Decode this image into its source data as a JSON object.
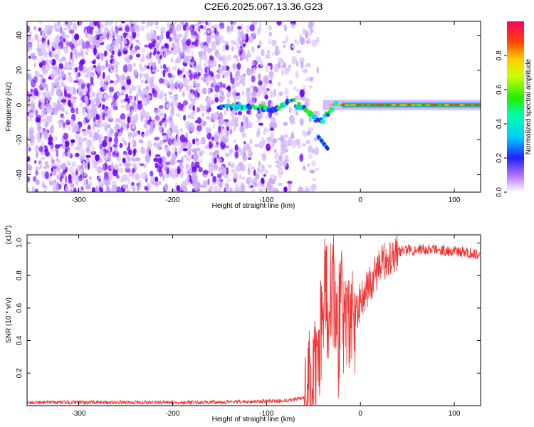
{
  "title": "C2E6.2025.067.13.36.G23",
  "chart_data": [
    {
      "type": "heatmap",
      "xlabel": "Height of straight line (km)",
      "ylabel": "Frequency (Hz)",
      "xlim": [
        -355,
        128
      ],
      "ylim": [
        -50,
        48
      ],
      "xticks": [
        -300,
        -200,
        -100,
        0,
        100
      ],
      "yticks": [
        -40,
        -20,
        0,
        20,
        40
      ],
      "colorbar": {
        "label": "Normalized spectral amplitude",
        "range": [
          0.0,
          1.0
        ],
        "ticks": [
          0.0,
          0.2,
          0.4,
          0.6,
          0.8
        ],
        "tick_labels": [
          "0.0",
          "0.2",
          "0.4",
          "0.6",
          "0.8"
        ]
      },
      "features": {
        "noise_region_km": [
          -355,
          -75
        ],
        "carrier_line_km": [
          -150,
          128
        ],
        "carrier_frequency_hz": 0,
        "secondary_branch": {
          "km": [
            -45,
            -35
          ],
          "freq_hz": [
            -18,
            -25
          ]
        }
      }
    },
    {
      "type": "line",
      "xlabel": "Height of straight line (km)",
      "ylabel": "SNR (10 * v/v)",
      "ylabel_scale": "(x10",
      "ylabel_scale_exp": "4",
      "ylabel_scale_close": ")",
      "xlim": [
        -355,
        128
      ],
      "ylim": [
        0.0,
        1.05
      ],
      "xticks": [
        -300,
        -200,
        -100,
        0,
        100
      ],
      "yticks": [
        0.2,
        0.4,
        0.6,
        0.8,
        1.0
      ],
      "ytick_labels": [
        "0.2",
        "0.4",
        "0.6",
        "0.8",
        "1.0"
      ],
      "series": [
        {
          "color": "#ee3333",
          "x": [
            -355,
            -300,
            -250,
            -200,
            -160,
            -120,
            -80,
            -60,
            -50,
            -45,
            -40,
            -38,
            -35,
            -30,
            -25,
            -20,
            -15,
            -10,
            -5,
            0,
            10,
            20,
            30,
            40,
            60,
            80,
            100,
            128
          ],
          "y": [
            0.02,
            0.02,
            0.02,
            0.02,
            0.02,
            0.025,
            0.03,
            0.05,
            0.1,
            0.2,
            0.45,
            0.9,
            0.5,
            0.85,
            0.4,
            0.7,
            0.45,
            0.6,
            0.55,
            0.65,
            0.75,
            0.85,
            0.92,
            0.95,
            0.96,
            0.96,
            0.95,
            0.93
          ]
        }
      ]
    }
  ],
  "colors": {
    "frame": "#000000",
    "line": "#ee3333"
  }
}
